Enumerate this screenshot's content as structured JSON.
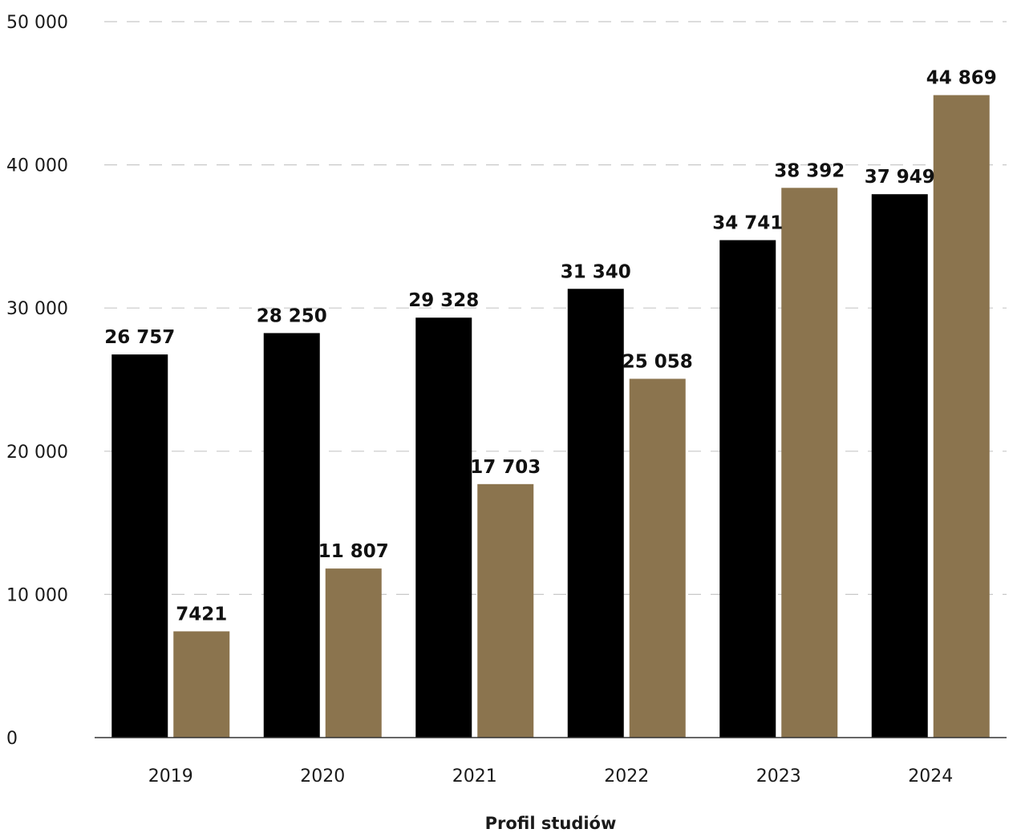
{
  "chart_data": {
    "type": "bar",
    "categories": [
      "2019",
      "2020",
      "2021",
      "2022",
      "2023",
      "2024"
    ],
    "series": [
      {
        "values": [
          26757,
          28250,
          29328,
          31340,
          34741,
          37949
        ],
        "color": "#000000"
      },
      {
        "values": [
          7421,
          11807,
          17703,
          25058,
          38392,
          44869
        ],
        "color": "#8b744e"
      }
    ],
    "data_labels": [
      [
        "26 757",
        "28 250",
        "29 328",
        "31 340",
        "34 741",
        "37 949"
      ],
      [
        "7421",
        "11 807",
        "17 703",
        "25 058",
        "38 392",
        "44 869"
      ]
    ],
    "yticks": [
      0,
      10000,
      20000,
      30000,
      40000,
      50000
    ],
    "ytick_labels": [
      "0",
      "10 000",
      "20 000",
      "30 000",
      "40 000",
      "50 000"
    ],
    "ylim": [
      0,
      50000
    ],
    "xlabel": "Profil studiów",
    "ylabel": "",
    "grid": true,
    "grid_style": "dashed",
    "legend": "none"
  }
}
